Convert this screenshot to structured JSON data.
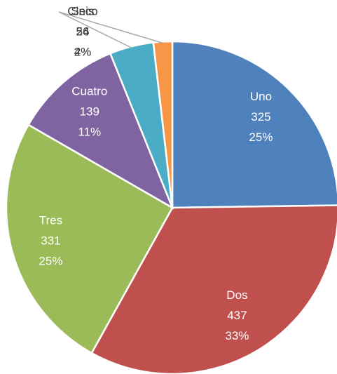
{
  "chart_data": {
    "type": "pie",
    "categories": [
      "Uno",
      "Dos",
      "Tres",
      "Cuatro",
      "Cinco",
      "Seis"
    ],
    "values": [
      325,
      437,
      331,
      139,
      56,
      24
    ],
    "percent_labels": [
      "25%",
      "33%",
      "25%",
      "11%",
      "4%",
      "2%"
    ],
    "colors": [
      "#4f81bd",
      "#c0504d",
      "#9bbb59",
      "#8064a2",
      "#4bacc6",
      "#f79646"
    ]
  }
}
